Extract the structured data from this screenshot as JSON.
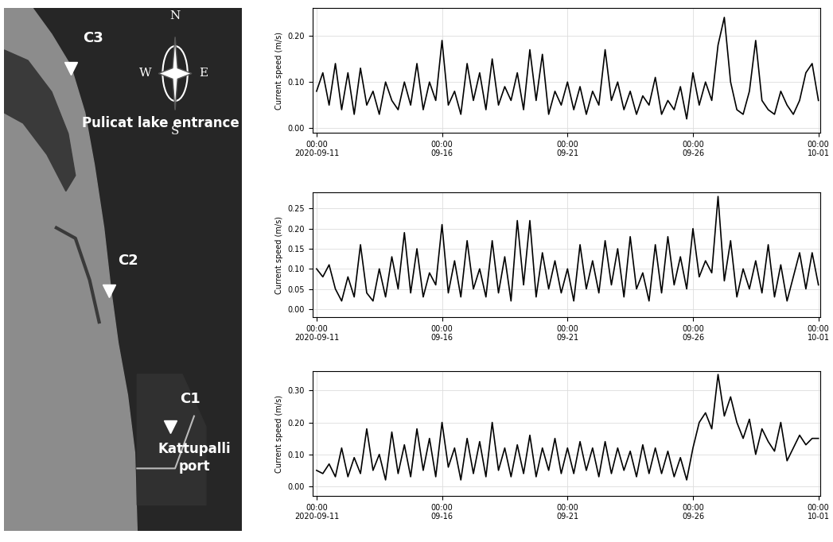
{
  "map": {
    "stations": [
      "C3",
      "C2",
      "C1"
    ],
    "places": [
      "Pulicat lake entrance",
      "Kattupalli\nport"
    ],
    "compass": [
      "N",
      "E",
      "S",
      "W"
    ]
  },
  "chart_data": [
    {
      "type": "line",
      "y_label": "Current speed (m/s)",
      "color": "#000000",
      "grid": true,
      "x": [
        "2020-09-11 00:00",
        "2020-09-11 06:00",
        "2020-09-11 12:00",
        "2020-09-11 18:00",
        "2020-09-12 00:00",
        "2020-09-12 06:00",
        "2020-09-12 12:00",
        "2020-09-12 18:00",
        "2020-09-13 00:00",
        "2020-09-13 06:00",
        "2020-09-13 12:00",
        "2020-09-13 18:00",
        "2020-09-14 00:00",
        "2020-09-14 06:00",
        "2020-09-14 12:00",
        "2020-09-14 18:00",
        "2020-09-15 00:00",
        "2020-09-15 06:00",
        "2020-09-15 12:00",
        "2020-09-15 18:00",
        "2020-09-16 00:00",
        "2020-09-16 06:00",
        "2020-09-16 12:00",
        "2020-09-16 18:00",
        "2020-09-17 00:00",
        "2020-09-17 06:00",
        "2020-09-17 12:00",
        "2020-09-17 18:00",
        "2020-09-18 00:00",
        "2020-09-18 06:00",
        "2020-09-18 12:00",
        "2020-09-18 18:00",
        "2020-09-19 00:00",
        "2020-09-19 06:00",
        "2020-09-19 12:00",
        "2020-09-19 18:00",
        "2020-09-20 00:00",
        "2020-09-20 06:00",
        "2020-09-20 12:00",
        "2020-09-20 18:00",
        "2020-09-21 00:00",
        "2020-09-21 06:00",
        "2020-09-21 12:00",
        "2020-09-21 18:00",
        "2020-09-22 00:00",
        "2020-09-22 06:00",
        "2020-09-22 12:00",
        "2020-09-22 18:00",
        "2020-09-23 00:00",
        "2020-09-23 06:00",
        "2020-09-23 12:00",
        "2020-09-23 18:00",
        "2020-09-24 00:00",
        "2020-09-24 06:00",
        "2020-09-24 12:00",
        "2020-09-24 18:00",
        "2020-09-25 00:00",
        "2020-09-25 06:00",
        "2020-09-25 12:00",
        "2020-09-25 18:00",
        "2020-09-26 00:00",
        "2020-09-26 06:00",
        "2020-09-26 12:00",
        "2020-09-26 18:00",
        "2020-09-27 00:00",
        "2020-09-27 06:00",
        "2020-09-27 12:00",
        "2020-09-27 18:00",
        "2020-09-28 00:00",
        "2020-09-28 06:00",
        "2020-09-28 12:00",
        "2020-09-28 18:00",
        "2020-09-29 00:00",
        "2020-09-29 06:00",
        "2020-09-29 12:00",
        "2020-09-29 18:00",
        "2020-09-30 00:00",
        "2020-09-30 06:00",
        "2020-09-30 12:00",
        "2020-09-30 18:00",
        "2020-10-01 00:00"
      ],
      "values": [
        0.08,
        0.12,
        0.05,
        0.14,
        0.04,
        0.12,
        0.03,
        0.13,
        0.05,
        0.08,
        0.03,
        0.1,
        0.06,
        0.04,
        0.1,
        0.05,
        0.14,
        0.04,
        0.1,
        0.06,
        0.19,
        0.05,
        0.08,
        0.03,
        0.14,
        0.06,
        0.12,
        0.04,
        0.15,
        0.05,
        0.09,
        0.06,
        0.12,
        0.04,
        0.17,
        0.06,
        0.16,
        0.03,
        0.08,
        0.05,
        0.1,
        0.04,
        0.09,
        0.03,
        0.08,
        0.05,
        0.17,
        0.06,
        0.1,
        0.04,
        0.08,
        0.03,
        0.07,
        0.05,
        0.11,
        0.03,
        0.06,
        0.04,
        0.09,
        0.02,
        0.12,
        0.05,
        0.1,
        0.06,
        0.18,
        0.24,
        0.1,
        0.04,
        0.03,
        0.08,
        0.19,
        0.06,
        0.04,
        0.03,
        0.08,
        0.05,
        0.03,
        0.06,
        0.12,
        0.14,
        0.06
      ],
      "xlim": [
        "2020-09-10 20:00",
        "2020-10-01 02:00"
      ],
      "xticks": [
        {
          "value": "2020-09-11 00:00",
          "label": "00:00\n2020-09-11"
        },
        {
          "value": "2020-09-16 00:00",
          "label": "00:00\n09-16"
        },
        {
          "value": "2020-09-21 00:00",
          "label": "00:00\n09-21"
        },
        {
          "value": "2020-09-26 00:00",
          "label": "00:00\n09-26"
        },
        {
          "value": "2020-10-01 00:00",
          "label": "00:00\n10-01"
        }
      ],
      "ylim": [
        -0.01,
        0.26
      ],
      "yticks": [
        {
          "value": 0,
          "label": "0.00"
        },
        {
          "value": 0.1,
          "label": "0.10"
        },
        {
          "value": 0.2,
          "label": "0.20"
        }
      ]
    },
    {
      "type": "line",
      "y_label": "Current speed (m/s)",
      "color": "#000000",
      "grid": true,
      "x": [
        "2020-09-11 00:00",
        "2020-09-11 06:00",
        "2020-09-11 12:00",
        "2020-09-11 18:00",
        "2020-09-12 00:00",
        "2020-09-12 06:00",
        "2020-09-12 12:00",
        "2020-09-12 18:00",
        "2020-09-13 00:00",
        "2020-09-13 06:00",
        "2020-09-13 12:00",
        "2020-09-13 18:00",
        "2020-09-14 00:00",
        "2020-09-14 06:00",
        "2020-09-14 12:00",
        "2020-09-14 18:00",
        "2020-09-15 00:00",
        "2020-09-15 06:00",
        "2020-09-15 12:00",
        "2020-09-15 18:00",
        "2020-09-16 00:00",
        "2020-09-16 06:00",
        "2020-09-16 12:00",
        "2020-09-16 18:00",
        "2020-09-17 00:00",
        "2020-09-17 06:00",
        "2020-09-17 12:00",
        "2020-09-17 18:00",
        "2020-09-18 00:00",
        "2020-09-18 06:00",
        "2020-09-18 12:00",
        "2020-09-18 18:00",
        "2020-09-19 00:00",
        "2020-09-19 06:00",
        "2020-09-19 12:00",
        "2020-09-19 18:00",
        "2020-09-20 00:00",
        "2020-09-20 06:00",
        "2020-09-20 12:00",
        "2020-09-20 18:00",
        "2020-09-21 00:00",
        "2020-09-21 06:00",
        "2020-09-21 12:00",
        "2020-09-21 18:00",
        "2020-09-22 00:00",
        "2020-09-22 06:00",
        "2020-09-22 12:00",
        "2020-09-22 18:00",
        "2020-09-23 00:00",
        "2020-09-23 06:00",
        "2020-09-23 12:00",
        "2020-09-23 18:00",
        "2020-09-24 00:00",
        "2020-09-24 06:00",
        "2020-09-24 12:00",
        "2020-09-24 18:00",
        "2020-09-25 00:00",
        "2020-09-25 06:00",
        "2020-09-25 12:00",
        "2020-09-25 18:00",
        "2020-09-26 00:00",
        "2020-09-26 06:00",
        "2020-09-26 12:00",
        "2020-09-26 18:00",
        "2020-09-27 00:00",
        "2020-09-27 06:00",
        "2020-09-27 12:00",
        "2020-09-27 18:00",
        "2020-09-28 00:00",
        "2020-09-28 06:00",
        "2020-09-28 12:00",
        "2020-09-28 18:00",
        "2020-09-29 00:00",
        "2020-09-29 06:00",
        "2020-09-29 12:00",
        "2020-09-29 18:00",
        "2020-09-30 00:00",
        "2020-09-30 06:00",
        "2020-09-30 12:00",
        "2020-09-30 18:00",
        "2020-10-01 00:00"
      ],
      "values": [
        0.1,
        0.08,
        0.11,
        0.05,
        0.02,
        0.08,
        0.03,
        0.16,
        0.04,
        0.02,
        0.1,
        0.03,
        0.13,
        0.05,
        0.19,
        0.04,
        0.15,
        0.03,
        0.09,
        0.06,
        0.21,
        0.04,
        0.12,
        0.03,
        0.17,
        0.05,
        0.1,
        0.03,
        0.17,
        0.04,
        0.13,
        0.02,
        0.22,
        0.06,
        0.22,
        0.03,
        0.14,
        0.05,
        0.12,
        0.04,
        0.1,
        0.02,
        0.16,
        0.05,
        0.12,
        0.04,
        0.17,
        0.06,
        0.15,
        0.03,
        0.18,
        0.05,
        0.09,
        0.02,
        0.16,
        0.04,
        0.18,
        0.06,
        0.13,
        0.05,
        0.2,
        0.08,
        0.12,
        0.09,
        0.28,
        0.07,
        0.17,
        0.03,
        0.1,
        0.05,
        0.12,
        0.04,
        0.16,
        0.03,
        0.11,
        0.02,
        0.08,
        0.14,
        0.05,
        0.14,
        0.06
      ],
      "xlim": [
        "2020-09-10 20:00",
        "2020-10-01 02:00"
      ],
      "xticks": [
        {
          "value": "2020-09-11 00:00",
          "label": "00:00\n2020-09-11"
        },
        {
          "value": "2020-09-16 00:00",
          "label": "00:00\n09-16"
        },
        {
          "value": "2020-09-21 00:00",
          "label": "00:00\n09-21"
        },
        {
          "value": "2020-09-26 00:00",
          "label": "00:00\n09-26"
        },
        {
          "value": "2020-10-01 00:00",
          "label": "00:00\n10-01"
        }
      ],
      "ylim": [
        -0.02,
        0.29
      ],
      "yticks": [
        {
          "value": 0,
          "label": "0.00"
        },
        {
          "value": 0.05,
          "label": "0.05"
        },
        {
          "value": 0.1,
          "label": "0.10"
        },
        {
          "value": 0.15,
          "label": "0.15"
        },
        {
          "value": 0.2,
          "label": "0.20"
        },
        {
          "value": 0.25,
          "label": "0.25"
        }
      ]
    },
    {
      "type": "line",
      "y_label": "Current speed (m/s)",
      "color": "#000000",
      "grid": true,
      "x": [
        "2020-09-11 00:00",
        "2020-09-11 06:00",
        "2020-09-11 12:00",
        "2020-09-11 18:00",
        "2020-09-12 00:00",
        "2020-09-12 06:00",
        "2020-09-12 12:00",
        "2020-09-12 18:00",
        "2020-09-13 00:00",
        "2020-09-13 06:00",
        "2020-09-13 12:00",
        "2020-09-13 18:00",
        "2020-09-14 00:00",
        "2020-09-14 06:00",
        "2020-09-14 12:00",
        "2020-09-14 18:00",
        "2020-09-15 00:00",
        "2020-09-15 06:00",
        "2020-09-15 12:00",
        "2020-09-15 18:00",
        "2020-09-16 00:00",
        "2020-09-16 06:00",
        "2020-09-16 12:00",
        "2020-09-16 18:00",
        "2020-09-17 00:00",
        "2020-09-17 06:00",
        "2020-09-17 12:00",
        "2020-09-17 18:00",
        "2020-09-18 00:00",
        "2020-09-18 06:00",
        "2020-09-18 12:00",
        "2020-09-18 18:00",
        "2020-09-19 00:00",
        "2020-09-19 06:00",
        "2020-09-19 12:00",
        "2020-09-19 18:00",
        "2020-09-20 00:00",
        "2020-09-20 06:00",
        "2020-09-20 12:00",
        "2020-09-20 18:00",
        "2020-09-21 00:00",
        "2020-09-21 06:00",
        "2020-09-21 12:00",
        "2020-09-21 18:00",
        "2020-09-22 00:00",
        "2020-09-22 06:00",
        "2020-09-22 12:00",
        "2020-09-22 18:00",
        "2020-09-23 00:00",
        "2020-09-23 06:00",
        "2020-09-23 12:00",
        "2020-09-23 18:00",
        "2020-09-24 00:00",
        "2020-09-24 06:00",
        "2020-09-24 12:00",
        "2020-09-24 18:00",
        "2020-09-25 00:00",
        "2020-09-25 06:00",
        "2020-09-25 12:00",
        "2020-09-25 18:00",
        "2020-09-26 00:00",
        "2020-09-26 06:00",
        "2020-09-26 12:00",
        "2020-09-26 18:00",
        "2020-09-27 00:00",
        "2020-09-27 06:00",
        "2020-09-27 12:00",
        "2020-09-27 18:00",
        "2020-09-28 00:00",
        "2020-09-28 06:00",
        "2020-09-28 12:00",
        "2020-09-28 18:00",
        "2020-09-29 00:00",
        "2020-09-29 06:00",
        "2020-09-29 12:00",
        "2020-09-29 18:00",
        "2020-09-30 00:00",
        "2020-09-30 06:00",
        "2020-09-30 12:00",
        "2020-09-30 18:00",
        "2020-10-01 00:00"
      ],
      "values": [
        0.05,
        0.04,
        0.07,
        0.03,
        0.12,
        0.03,
        0.09,
        0.04,
        0.18,
        0.05,
        0.1,
        0.02,
        0.17,
        0.04,
        0.13,
        0.03,
        0.18,
        0.05,
        0.15,
        0.03,
        0.2,
        0.06,
        0.12,
        0.02,
        0.15,
        0.04,
        0.14,
        0.03,
        0.2,
        0.05,
        0.12,
        0.03,
        0.13,
        0.04,
        0.16,
        0.03,
        0.12,
        0.05,
        0.15,
        0.04,
        0.12,
        0.04,
        0.14,
        0.05,
        0.12,
        0.03,
        0.14,
        0.04,
        0.12,
        0.05,
        0.11,
        0.03,
        0.13,
        0.04,
        0.12,
        0.04,
        0.11,
        0.03,
        0.09,
        0.02,
        0.12,
        0.2,
        0.23,
        0.18,
        0.35,
        0.22,
        0.28,
        0.2,
        0.15,
        0.21,
        0.1,
        0.18,
        0.14,
        0.11,
        0.2,
        0.08,
        0.12,
        0.16,
        0.13,
        0.15,
        0.15
      ],
      "xlim": [
        "2020-09-10 20:00",
        "2020-10-01 02:00"
      ],
      "xticks": [
        {
          "value": "2020-09-11 00:00",
          "label": "00:00\n2020-09-11"
        },
        {
          "value": "2020-09-16 00:00",
          "label": "00:00\n09-16"
        },
        {
          "value": "2020-09-21 00:00",
          "label": "00:00\n09-21"
        },
        {
          "value": "2020-09-26 00:00",
          "label": "00:00\n09-26"
        },
        {
          "value": "2020-10-01 00:00",
          "label": "00:00\n10-01"
        }
      ],
      "ylim": [
        -0.03,
        0.36
      ],
      "yticks": [
        {
          "value": 0,
          "label": "0.00"
        },
        {
          "value": 0.1,
          "label": "0.10"
        },
        {
          "value": 0.2,
          "label": "0.20"
        },
        {
          "value": 0.3,
          "label": "0.30"
        }
      ]
    }
  ]
}
